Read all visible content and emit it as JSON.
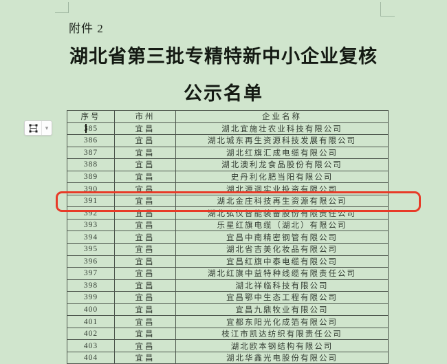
{
  "page": {
    "attachment_label": "附件 2",
    "title_line1": "湖北省第三批专精特新中小企业复核",
    "title_line2": "公示名单"
  },
  "table": {
    "headers": [
      "序号",
      "市州",
      "企业名称"
    ],
    "rows": [
      {
        "no": "385",
        "city": "宜昌",
        "name": "湖北宜施壮农业科技有限公司"
      },
      {
        "no": "386",
        "city": "宜昌",
        "name": "湖北城东再生资源科技发展有限公司"
      },
      {
        "no": "387",
        "city": "宜昌",
        "name": "湖北红旗汇成电缆有限公司"
      },
      {
        "no": "388",
        "city": "宜昌",
        "name": "湖北澳利龙食品股份有限公司"
      },
      {
        "no": "389",
        "city": "宜昌",
        "name": "史丹利化肥当阳有限公司"
      },
      {
        "no": "390",
        "city": "宜昌",
        "name": "湖北源迴实业投资有限公司"
      },
      {
        "no": "391",
        "city": "宜昌",
        "name": "湖北金庄科技再生资源有限公司"
      },
      {
        "no": "392",
        "city": "宜昌",
        "name": "湖北弘仪智能装备股份有限责任公司"
      },
      {
        "no": "393",
        "city": "宜昌",
        "name": "乐星红旗电缆（湖北）有限公司"
      },
      {
        "no": "394",
        "city": "宜昌",
        "name": "宜昌中南精密钢管有限公司"
      },
      {
        "no": "395",
        "city": "宜昌",
        "name": "湖北省吉美化妆品有限公司"
      },
      {
        "no": "396",
        "city": "宜昌",
        "name": "宜昌红旗中泰电缆有限公司"
      },
      {
        "no": "397",
        "city": "宜昌",
        "name": "湖北红旗中益特种线缆有限责任公司"
      },
      {
        "no": "398",
        "city": "宜昌",
        "name": "湖北祥临科技有限公司"
      },
      {
        "no": "399",
        "city": "宜昌",
        "name": "宜昌鄂中生态工程有限公司"
      },
      {
        "no": "400",
        "city": "宜昌",
        "name": "宜昌九鼎牧业有限公司"
      },
      {
        "no": "401",
        "city": "宜昌",
        "name": "宜都东阳光化成箔有限公司"
      },
      {
        "no": "402",
        "city": "宜昌",
        "name": "枝江市凯达纺织有限责任公司"
      },
      {
        "no": "403",
        "city": "宜昌",
        "name": "湖北欧本钢结构有限公司"
      },
      {
        "no": "404",
        "city": "宜昌",
        "name": "湖北华鑫光电股份有限公司"
      }
    ],
    "highlighted_row_no": "391"
  },
  "colors": {
    "background": "#d0e5cd",
    "highlight_border": "#e73b28",
    "table_border": "#4d564d",
    "text": "#30382f"
  }
}
